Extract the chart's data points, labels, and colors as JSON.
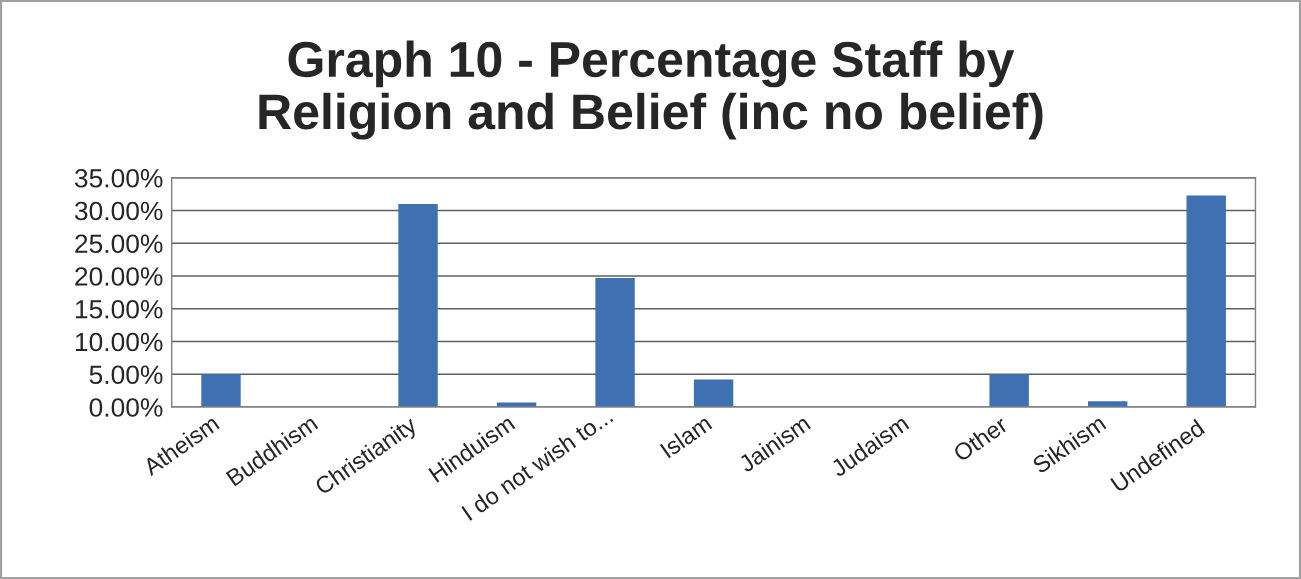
{
  "chart_data": {
    "type": "bar",
    "title": "Graph 10 - Percentage Staff by\nReligion and Belief (inc no belief)",
    "categories": [
      "Atheism",
      "Buddhism",
      "Christianity",
      "Hinduism",
      "I do not wish to...",
      "Islam",
      "Jainism",
      "Judaism",
      "Other",
      "Sikhism",
      "Undefined"
    ],
    "values": [
      5.0,
      0,
      31.0,
      0.7,
      19.7,
      4.2,
      0,
      0,
      5.0,
      0.9,
      32.3
    ],
    "color": "#3f70b2",
    "ylim": [
      0,
      35
    ],
    "yticks": [
      {
        "value": 0,
        "label": "0.00%"
      },
      {
        "value": 5,
        "label": "5.00%"
      },
      {
        "value": 10,
        "label": "10.00%"
      },
      {
        "value": 15,
        "label": "15.00%"
      },
      {
        "value": 20,
        "label": "20.00%"
      },
      {
        "value": 25,
        "label": "25.00%"
      },
      {
        "value": 30,
        "label": "30.00%"
      },
      {
        "value": 35,
        "label": "35.00%"
      }
    ],
    "grid": "y"
  }
}
